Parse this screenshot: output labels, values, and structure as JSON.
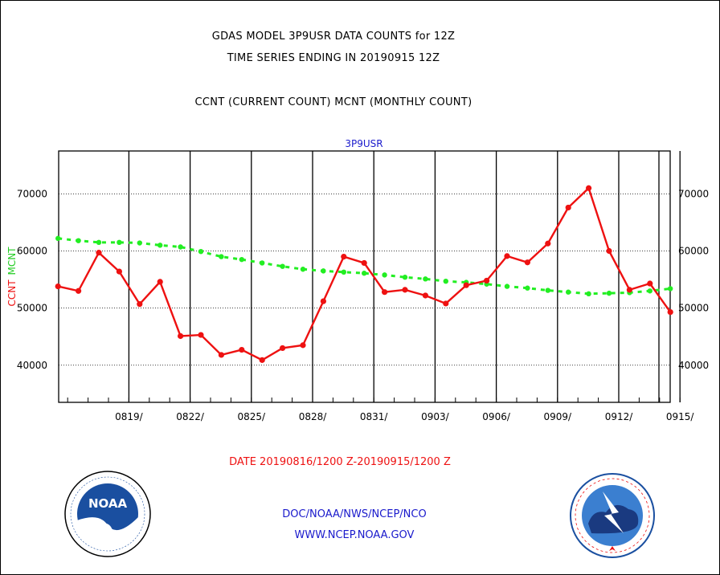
{
  "titles": {
    "line1": "GDAS MODEL 3P9USR DATA COUNTS for 12Z",
    "line2": "TIME SERIES ENDING IN 20190915 12Z",
    "line3": "CCNT (CURRENT COUNT) MCNT (MONTHLY COUNT)"
  },
  "footer": {
    "org": "DOC/NOAA/NWS/NCEP/NCO",
    "url": "WWW.NCEP.NOAA.GOV"
  },
  "logos": {
    "noaa_text": "NOAA",
    "noaa_ring": "NATIONAL OCEANIC AND ATMOSPHERIC ADMINISTRATION · U.S. DEPARTMENT OF COMMERCE",
    "nws_ring": "NATIONAL WEATHER SERVICE"
  },
  "colors": {
    "ccnt": "#ee1111",
    "mcnt": "#22ee22",
    "panel_title": "#1a1acc",
    "footer": "#1a1acc"
  },
  "chart_data": {
    "type": "line",
    "title": "3P9USR",
    "ylabel_left": [
      "CCNT",
      "MCNT"
    ],
    "xlabel": "DATE 20190816/1200 Z-20190915/1200 Z",
    "x_start": "0816",
    "x_ticks": [
      "0819/",
      "0822/",
      "0825/",
      "0828/",
      "0831/",
      "0903/",
      "0906/",
      "0909/",
      "0912/",
      "0915/"
    ],
    "y_ticks": [
      40000,
      50000,
      60000,
      70000
    ],
    "y_ticks_labels": [
      "40000",
      "50000",
      "60000",
      "70000"
    ],
    "ylim": [
      33500,
      77500
    ],
    "grid": true,
    "series": [
      {
        "name": "CCNT",
        "values": [
          53800,
          53000,
          59700,
          56400,
          50700,
          54600,
          45100,
          45300,
          41800,
          42700,
          40900,
          43000,
          43500,
          51200,
          59000,
          57900,
          52800,
          53200,
          52200,
          50800,
          54000,
          54800,
          59100,
          58000,
          61300,
          67600,
          71000,
          60000,
          53200,
          54300,
          49300
        ]
      },
      {
        "name": "MCNT",
        "values": [
          62200,
          61800,
          61500,
          61500,
          61400,
          61000,
          60700,
          59900,
          59000,
          58500,
          57900,
          57300,
          56800,
          56500,
          56300,
          56100,
          55800,
          55400,
          55100,
          54700,
          54500,
          54200,
          53800,
          53500,
          53100,
          52800,
          52500,
          52600,
          52700,
          53000,
          53400
        ]
      }
    ]
  }
}
